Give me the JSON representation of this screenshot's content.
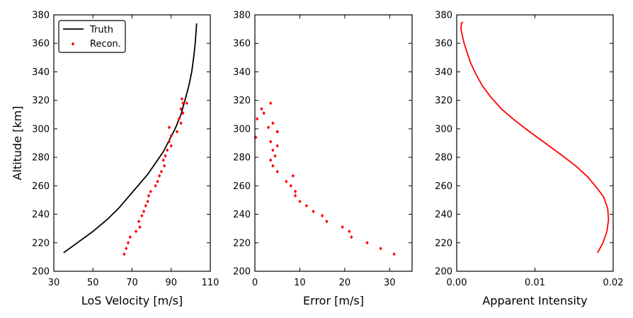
{
  "chart_data": [
    {
      "type": "line",
      "xlabel": "LoS Velocity [m/s]",
      "ylabel": "Altitude [km]",
      "xlim": [
        30,
        110
      ],
      "ylim": [
        200,
        380
      ],
      "xticks": [
        30,
        50,
        70,
        90,
        110
      ],
      "yticks": [
        200,
        220,
        240,
        260,
        280,
        300,
        320,
        340,
        360,
        380
      ],
      "grid": false,
      "legend": {
        "placement": "top-left",
        "entries": [
          "Truth",
          "Recon."
        ]
      },
      "series": [
        {
          "name": "Truth",
          "style": "line",
          "color": "#000000",
          "x": [
            35,
            42,
            50,
            57,
            63,
            68,
            73,
            78,
            82,
            86,
            89,
            92,
            95,
            97,
            99,
            100.5,
            101.5,
            102.3,
            103
          ],
          "y": [
            213,
            220,
            228,
            236,
            244,
            252,
            260,
            268,
            276,
            284,
            292,
            300,
            310,
            320,
            330,
            340,
            350,
            360,
            374
          ]
        },
        {
          "name": "Recon.",
          "style": "markers",
          "color": "#ff0000",
          "x": [
            66,
            67,
            68,
            69,
            72,
            74,
            73.5,
            75,
            76,
            77,
            78,
            78.5,
            79.5,
            82,
            83,
            84,
            85,
            86.5,
            86,
            87,
            88,
            90,
            89,
            90,
            93,
            89,
            95,
            94,
            96,
            95,
            96,
            95.5,
            98
          ],
          "y": [
            212,
            216,
            220,
            224,
            228,
            231,
            235,
            239,
            242,
            246,
            249,
            253,
            256,
            260,
            263,
            267,
            270,
            274,
            278,
            281,
            285,
            288,
            291,
            295,
            298,
            301,
            304,
            307,
            311,
            314,
            318,
            321,
            318
          ]
        }
      ]
    },
    {
      "type": "scatter",
      "xlabel": "Error [m/s]",
      "ylabel": "",
      "xlim": [
        0,
        35
      ],
      "ylim": [
        200,
        380
      ],
      "xticks": [
        0,
        10,
        20,
        30
      ],
      "yticks": [
        200,
        220,
        240,
        260,
        280,
        300,
        320,
        340,
        360,
        380
      ],
      "grid": false,
      "series": [
        {
          "style": "markers",
          "color": "#ff0000",
          "x": [
            31,
            28,
            25,
            21.5,
            21,
            19.5,
            16,
            15,
            13,
            11.5,
            10,
            9,
            9,
            8,
            7,
            8.5,
            5,
            4,
            3.5,
            4.5,
            4,
            5,
            3.5,
            5,
            0.2,
            5,
            3,
            4,
            0.5,
            2,
            1.5,
            3.5
          ],
          "y": [
            212,
            216,
            220,
            224,
            228,
            231,
            235,
            239,
            242,
            246,
            249,
            253,
            256,
            260,
            263,
            267,
            270,
            274,
            278,
            281,
            285,
            288,
            291,
            298,
            294,
            298,
            301,
            304,
            307,
            311,
            314,
            318
          ]
        }
      ]
    },
    {
      "type": "line",
      "xlabel": "Apparent Intensity",
      "ylabel": "",
      "xlim": [
        0.0,
        0.02
      ],
      "ylim": [
        200,
        380
      ],
      "xticks": [
        0.0,
        0.01,
        0.02
      ],
      "xtick_labels": [
        "0.00",
        "0.01",
        "0.02"
      ],
      "yticks": [
        200,
        220,
        240,
        260,
        280,
        300,
        320,
        340,
        360,
        380
      ],
      "grid": false,
      "series": [
        {
          "style": "line",
          "color": "#ff0000",
          "x": [
            0.018,
            0.0187,
            0.0192,
            0.0194,
            0.0193,
            0.0188,
            0.018,
            0.0168,
            0.0152,
            0.0133,
            0.0113,
            0.0093,
            0.0074,
            0.0057,
            0.0044,
            0.0033,
            0.0025,
            0.0018,
            0.0013,
            0.00095,
            0.0007,
            0.00055,
            0.0006,
            0.0008
          ],
          "y": [
            213,
            220,
            228,
            236,
            244,
            252,
            258,
            266,
            274,
            282,
            290,
            298,
            306,
            314,
            322,
            330,
            338,
            346,
            354,
            360,
            366,
            370,
            374,
            375
          ]
        }
      ]
    }
  ]
}
